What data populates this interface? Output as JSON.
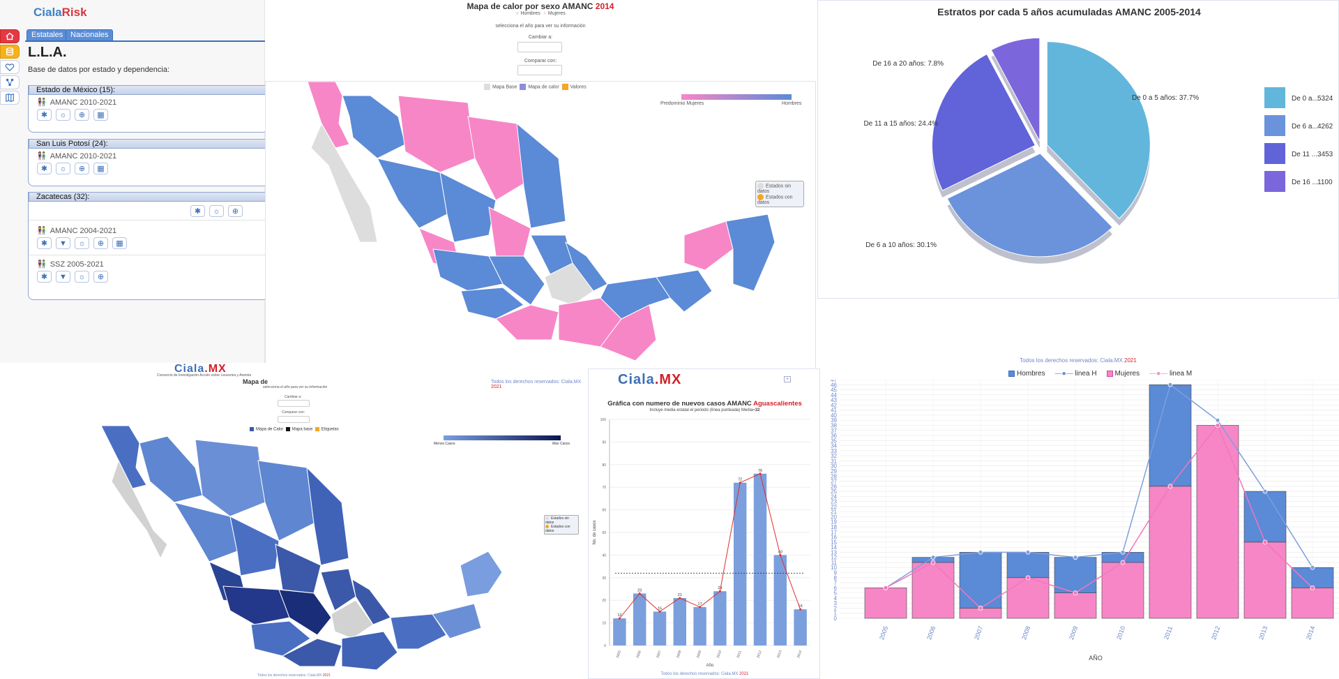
{
  "app": {
    "logo_a": "Ciala",
    "logo_b": "Risk",
    "tabs": [
      "Estatales",
      "Nacionales"
    ],
    "title": "L.L.A.",
    "subtitle": "Base de datos por estado y dependencia:",
    "groups": [
      {
        "name": "Estado de México (15):",
        "datasets": [
          {
            "label": "AMANC 2010-2021"
          }
        ]
      },
      {
        "name": "San Luis Potosí (24):",
        "datasets": [
          {
            "label": "AMANC 2010-2021"
          }
        ]
      },
      {
        "name": "Zacatecas (32):",
        "datasets": [
          {
            "label": "AMANC 2004-2021"
          },
          {
            "label": "SSZ 2005-2021"
          }
        ]
      }
    ]
  },
  "map_sex": {
    "title": "Mapa de calor por sexo AMANC ",
    "year": "2014",
    "leg_h": "Hombres",
    "leg_m": "Mujeres",
    "select_hint": "selecciona el año para ver su información",
    "cambiar": "Cambiar a:",
    "comparar": "Comparar con:",
    "layers": [
      "Mapa Base",
      "Mapa de calor",
      "Valores"
    ],
    "grad_left": "Predominio Mujeres",
    "grad_right": "Hombres",
    "box1": "Estados sin datos",
    "box2": "Estados con datos"
  },
  "pie": {
    "title": "Estratos por cada 5 años acumuladas AMANC 2005-2014",
    "colors": [
      "#62b6dc",
      "#6a93dc",
      "#6163d9",
      "#7c66dc"
    ],
    "chart_data": {
      "type": "pie",
      "labels": [
        "De 0 a 5 años",
        "De 6 a 10 años",
        "De 11 a 15 años",
        "De 16 a 20 años"
      ],
      "values": [
        5324,
        4262,
        3453,
        1100
      ],
      "percent": [
        37.7,
        30.1,
        24.4,
        7.8
      ]
    },
    "slice_labels": [
      "De 0 a 5 años: 37.7%",
      "De 6 a 10 años: 30.1%",
      "De 11 a 15 años: 24.4%",
      "De 16 a 20 años: 7.8%"
    ],
    "legend": [
      {
        "label": "De 0 a...",
        "value": "5324"
      },
      {
        "label": "De 6 a...",
        "value": "4262"
      },
      {
        "label": "De 11 ...",
        "value": "3453"
      },
      {
        "label": "De 16 ...",
        "value": "1100"
      }
    ]
  },
  "footers": {
    "top": "Todos los derechos reservados: Ciala.MX ",
    "year": "2021"
  },
  "map_cases": {
    "brand_a": "Ciala",
    "brand_b": ".MX",
    "brand_sub": "Consorcio de Investigación Acción sobre Leucemia y Anemia",
    "title": "Mapa de",
    "select_hint": "selecciona el año para ver su información",
    "cambiar": "Cambiar a:",
    "comparar": "Comparar con:",
    "layers": [
      "Mapa de Calor",
      "Mapa base",
      "Etiquetas"
    ],
    "grad_left": "Menos Casos",
    "grad_right": "Más Casos",
    "box1": "Estados sin datos",
    "box2": "Estados con datos",
    "footer": "Todos los derechos reservados: Ciala.MX ",
    "footer_year": "2021"
  },
  "ags": {
    "brand_a": "Ciala",
    "brand_b": ".MX",
    "title": "Gráfica con numero de nuevos casos AMANC ",
    "state": "Aguascalientes",
    "subtitle": "Incluye media estatal el periodo (línea punteada) Media=",
    "media": "32",
    "xlabel": "Año",
    "ylabel": "No. de casos",
    "footer": "Todos los derechos reservados: Ciala.MX ",
    "footer_year": "2021",
    "chart_data": {
      "type": "bar",
      "categories": [
        "2005",
        "2006",
        "2007",
        "2008",
        "2009",
        "2010",
        "2011",
        "2012",
        "2013",
        "2014"
      ],
      "values": [
        12,
        23,
        15,
        21,
        17,
        24,
        72,
        76,
        40,
        16
      ],
      "mean": 32,
      "ylim": [
        0,
        100
      ],
      "yticks": [
        0,
        10,
        20,
        30,
        40,
        50,
        60,
        70,
        80,
        90,
        100
      ]
    }
  },
  "sexbars": {
    "legend": [
      "Hombres",
      "linea H",
      "Mujeres",
      "linea M"
    ],
    "xlabel": "AÑO",
    "colors": {
      "h": "#5b8ad6",
      "m": "#f786c7"
    },
    "chart_data": {
      "type": "bar",
      "categories": [
        "2005",
        "2006",
        "2007",
        "2008",
        "2009",
        "2010",
        "2011",
        "2012",
        "2013",
        "2014"
      ],
      "series": [
        {
          "name": "Mujeres",
          "values": [
            6,
            11,
            2,
            8,
            5,
            11,
            26,
            38,
            15,
            6
          ]
        },
        {
          "name": "Hombres",
          "values": [
            0,
            1,
            11,
            5,
            7,
            2,
            20,
            0,
            10,
            4
          ]
        }
      ],
      "line_h": [
        6,
        12,
        13,
        13,
        12,
        13,
        46,
        39,
        25,
        10
      ],
      "line_m": [
        6,
        11,
        2,
        8,
        5,
        11,
        26,
        38,
        15,
        6
      ],
      "ylim": [
        0,
        47
      ]
    }
  }
}
